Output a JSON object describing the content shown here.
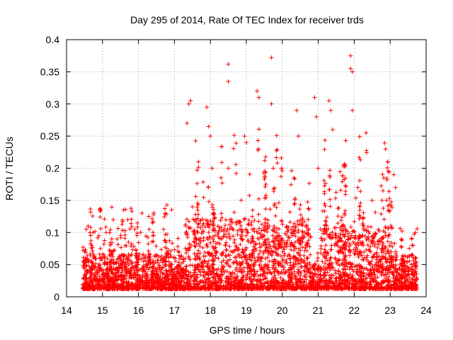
{
  "chart_data": {
    "type": "scatter",
    "title": "Day 295 of 2014, Rate Of TEC Index for receiver trds",
    "xlabel": "GPS time / hours",
    "ylabel": "ROTI / TECUs",
    "xlim": [
      14,
      24
    ],
    "ylim": [
      0,
      0.4
    ],
    "x_ticks": [
      "14",
      "15",
      "16",
      "17",
      "18",
      "19",
      "20",
      "21",
      "22",
      "23",
      "24"
    ],
    "y_ticks": [
      "0",
      "0.05",
      "0.1",
      "0.15",
      "0.2",
      "0.25",
      "0.3",
      "0.35",
      "0.4"
    ],
    "grid": true,
    "marker": "+",
    "series_color": "#ff0000",
    "x_range_of_data": [
      14.45,
      23.75
    ],
    "series": [
      {
        "name": "ROTI",
        "note": "dense cloud of '+' markers; representative sampled points listed",
        "x": [
          14.5,
          14.55,
          14.6,
          14.65,
          14.7,
          14.9,
          15.1,
          15.3,
          15.7,
          15.9,
          16.1,
          16.3,
          16.7,
          17.35,
          17.4,
          17.45,
          17.5,
          17.9,
          17.95,
          18.0,
          18.05,
          18.5,
          18.5,
          18.5,
          18.95,
          19.0,
          19.05,
          19.3,
          19.35,
          19.7,
          19.7,
          19.75,
          20.4,
          20.45,
          20.9,
          20.95,
          21.0,
          21.3,
          21.35,
          21.4,
          21.9,
          21.9,
          21.95,
          21.95,
          22.1,
          22.5,
          22.9,
          23.1,
          23.15,
          23.6,
          23.7
        ],
        "y": [
          0.07,
          0.105,
          0.11,
          0.1,
          0.08,
          0.095,
          0.1,
          0.12,
          0.12,
          0.105,
          0.13,
          0.105,
          0.105,
          0.27,
          0.3,
          0.305,
          0.14,
          0.295,
          0.265,
          0.25,
          0.2,
          0.362,
          0.335,
          0.2,
          0.25,
          0.24,
          0.1,
          0.32,
          0.31,
          0.372,
          0.3,
          0.2,
          0.29,
          0.25,
          0.31,
          0.28,
          0.2,
          0.305,
          0.29,
          0.26,
          0.375,
          0.355,
          0.35,
          0.29,
          0.17,
          0.15,
          0.15,
          0.19,
          0.17,
          0.09,
          0.1
        ]
      }
    ]
  }
}
